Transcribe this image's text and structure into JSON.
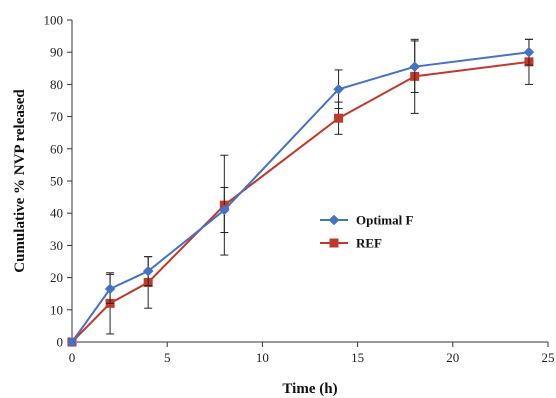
{
  "chart_data": {
    "type": "line",
    "xlabel": "Time (h)",
    "ylabel": "Cumulative % NVP released",
    "xlim": [
      0,
      25
    ],
    "ylim": [
      0,
      100
    ],
    "xticks": [
      "0",
      "5",
      "10",
      "15",
      "20",
      "25"
    ],
    "yticks": [
      "0",
      "10",
      "20",
      "30",
      "40",
      "50",
      "60",
      "70",
      "80",
      "90",
      "100"
    ],
    "grid": false,
    "legend_position": "center-right",
    "x": [
      0,
      2,
      4,
      8,
      14,
      18,
      24
    ],
    "series": [
      {
        "name": "Optimal F",
        "color": "#4472C4",
        "marker": "diamond",
        "values": [
          0,
          16.5,
          22,
          41,
          78.5,
          85.5,
          90
        ],
        "errors": [
          0,
          4.5,
          4.5,
          7,
          6,
          8,
          4
        ]
      },
      {
        "name": "REF",
        "color": "#C0392B",
        "marker": "square",
        "values": [
          0,
          12,
          18.5,
          42.5,
          69.5,
          82.5,
          87
        ],
        "errors": [
          0,
          9.5,
          8,
          15.5,
          5,
          11.5,
          7
        ]
      }
    ]
  }
}
